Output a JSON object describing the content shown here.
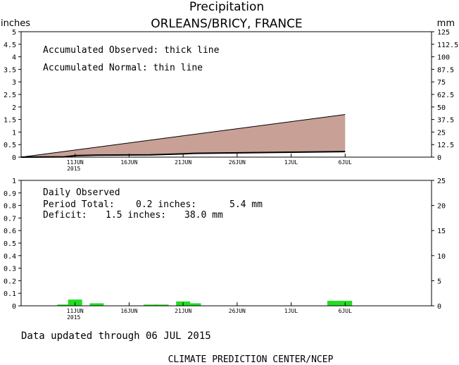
{
  "chart_data": [
    {
      "type": "area",
      "title": "Precipitation",
      "subtitle": "ORLEANS/BRICY, FRANCE",
      "ylabel_left": "inches",
      "ylabel_right": "mm",
      "ylim": [
        0,
        5
      ],
      "ylim_right": [
        0,
        125
      ],
      "yticks_left": [
        "0",
        "0.5",
        "1",
        "1.5",
        "2",
        "2.5",
        "3",
        "3.5",
        "4",
        "4.5",
        "5"
      ],
      "yticks_right": [
        "0",
        "12.5",
        "25",
        "37.5",
        "50",
        "62.5",
        "75",
        "87.5",
        "100",
        "112.5",
        "125"
      ],
      "xlim_day": [
        0,
        38
      ],
      "xticks": [
        {
          "day": 5,
          "label": "11JUN",
          "sublabel": "2015"
        },
        {
          "day": 10,
          "label": "16JUN"
        },
        {
          "day": 15,
          "label": "21JUN"
        },
        {
          "day": 20,
          "label": "26JUN"
        },
        {
          "day": 25,
          "label": "1JUL"
        },
        {
          "day": 30,
          "label": "6JUL"
        }
      ],
      "annotations": [
        "Accumulated Observed: thick line",
        "Accumulated Normal: thin line"
      ],
      "series": [
        {
          "name": "Accumulated Normal",
          "x": [
            0,
            30
          ],
          "values": [
            0,
            1.7
          ]
        },
        {
          "name": "Accumulated Observed",
          "x": [
            0,
            4,
            5,
            7,
            12,
            15,
            16,
            30
          ],
          "values": [
            0,
            0.01,
            0.06,
            0.08,
            0.09,
            0.13,
            0.15,
            0.22
          ]
        }
      ],
      "fill_color": "#c8a096"
    },
    {
      "type": "bar",
      "title": "Daily Observed",
      "ylim": [
        0,
        1
      ],
      "ylim_right": [
        0,
        25
      ],
      "yticks_left": [
        "0",
        "0.1",
        "0.2",
        "0.3",
        "0.4",
        "0.5",
        "0.6",
        "0.7",
        "0.8",
        "0.9",
        "1"
      ],
      "yticks_right": [
        "0",
        "5",
        "10",
        "15",
        "20",
        "25"
      ],
      "xlim_day": [
        0,
        38
      ],
      "xticks": [
        {
          "day": 5,
          "label": "11JUN",
          "sublabel": "2015"
        },
        {
          "day": 10,
          "label": "16JUN"
        },
        {
          "day": 15,
          "label": "21JUN"
        },
        {
          "day": 20,
          "label": "26JUN"
        },
        {
          "day": 25,
          "label": "1JUL"
        },
        {
          "day": 30,
          "label": "6JUL"
        }
      ],
      "bars": [
        {
          "day": 4,
          "value": 0.01
        },
        {
          "day": 5,
          "value": 0.05
        },
        {
          "day": 7,
          "value": 0.02
        },
        {
          "day": 12,
          "value": 0.01
        },
        {
          "day": 13,
          "value": 0.01
        },
        {
          "day": 15,
          "value": 0.035
        },
        {
          "day": 16,
          "value": 0.02
        },
        {
          "day": 29,
          "value": 0.04
        },
        {
          "day": 30,
          "value": 0.04
        }
      ],
      "bar_color": "#22dd22",
      "stats": {
        "total_label": "Period Total:",
        "total_in": "0.2 inches:",
        "total_mm": "5.4 mm",
        "deficit_label": "Deficit:",
        "deficit_in": "1.5 inches:",
        "deficit_mm": "38.0 mm"
      }
    }
  ],
  "footer": {
    "updated": "Data updated through 06 JUL 2015",
    "credit": "CLIMATE PREDICTION CENTER/NCEP"
  }
}
